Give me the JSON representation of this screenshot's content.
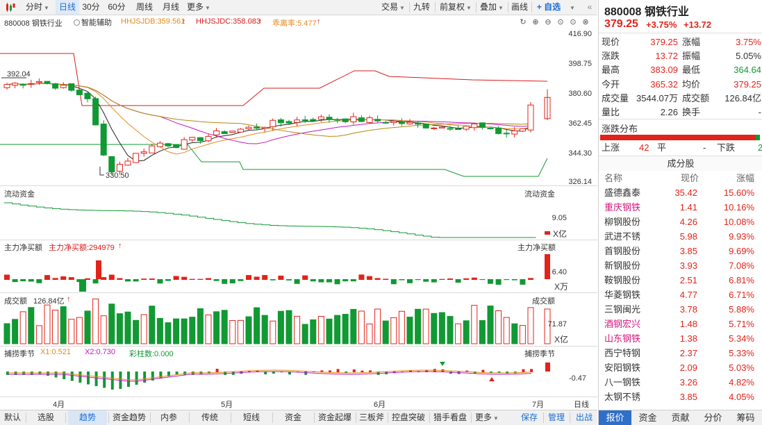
{
  "toolbar": {
    "left_items": [
      "分时",
      "日线",
      "30分",
      "60分",
      "周线",
      "月线",
      "更多"
    ],
    "active": "日线",
    "right_items": [
      "交易",
      "九转",
      "前复权",
      "叠加",
      "画线"
    ],
    "self_select": "+ 自选"
  },
  "main_panel": {
    "code_name": "880008 钢铁行业",
    "assist": "智能辅助",
    "ind1": "HHJSJDB:359.561",
    "ind2": "HHJSJDC:358.083",
    "ind3": "乖离率:5.477",
    "y_ticks": [
      "416.90",
      "398.75",
      "380.60",
      "362.45",
      "344.30",
      "326.14"
    ],
    "high_label": "392.04",
    "low_label": "330.50"
  },
  "flow_panel": {
    "title": "流动资金",
    "title_right": "流动资金",
    "value": "9.05",
    "unit": "X亿"
  },
  "net_panel": {
    "title": "主力净买额",
    "indicator": "主力净买额:294979",
    "title_right": "主力净买额",
    "value": "6.40",
    "unit": "X万"
  },
  "vol_panel": {
    "title": "成交额",
    "indicator": "126.84亿",
    "title_right": "成交额",
    "value": "71.87",
    "unit": "X亿"
  },
  "osc_panel": {
    "title": "捕捞季节",
    "x1": "X1:0.521",
    "x2": "X2:0.730",
    "bars": "彩柱数:0.000",
    "title_right": "捕捞季节",
    "value": "-0.47"
  },
  "x_axis": {
    "labels": [
      "4月",
      "5月",
      "6月",
      "7月"
    ],
    "period": "日线"
  },
  "bottom_bar": [
    "默认",
    "选股",
    "趋势",
    "资金趋势",
    "内参",
    "传统",
    "短线",
    "资金",
    "资金起爆",
    "三板斧",
    "控盘突破",
    "猎手看盘",
    "更多",
    "保存",
    "管理",
    "出战"
  ],
  "bottom_active": "趋势",
  "quote": {
    "code": "880008",
    "name": "钢铁行业",
    "price": "379.25",
    "change_pct": "+3.75%",
    "change": "+13.72",
    "rows": [
      {
        "l1": "现价",
        "v1": "379.25",
        "l2": "涨幅",
        "v2": "3.75%"
      },
      {
        "l1": "涨跌",
        "v1": "13.72",
        "l2": "振幅",
        "v2": "5.05%"
      },
      {
        "l1": "最高",
        "v1": "383.09",
        "l2": "最低",
        "v2": "364.64"
      },
      {
        "l1": "今开",
        "v1": "365.32",
        "l2": "均价",
        "v2": "379.25"
      },
      {
        "l1": "成交量",
        "v1": "3544.07万",
        "l2": "成交额",
        "v2": "126.84亿"
      },
      {
        "l1": "量比",
        "v1": "2.26",
        "l2": "换手",
        "v2": "-"
      }
    ],
    "dist_title": "涨跌分布",
    "up_label": "上涨",
    "up": "42",
    "flat_label": "平",
    "flat": "-",
    "down_label": "下跌",
    "down": "2",
    "section": "成分股",
    "headers": [
      "名称",
      "现价",
      "涨幅"
    ],
    "stocks": [
      {
        "name": "盛德鑫泰",
        "price": "35.42",
        "pct": "15.60%",
        "pink": false
      },
      {
        "name": "重庆钢铁",
        "price": "1.41",
        "pct": "10.16%",
        "pink": true
      },
      {
        "name": "柳钢股份",
        "price": "4.26",
        "pct": "10.08%",
        "pink": false
      },
      {
        "name": "武进不锈",
        "price": "5.98",
        "pct": "9.93%",
        "pink": false
      },
      {
        "name": "首钢股份",
        "price": "3.85",
        "pct": "9.69%",
        "pink": false
      },
      {
        "name": "新钢股份",
        "price": "3.93",
        "pct": "7.08%",
        "pink": false
      },
      {
        "name": "鞍钢股份",
        "price": "2.51",
        "pct": "6.81%",
        "pink": false
      },
      {
        "name": "华菱钢铁",
        "price": "4.77",
        "pct": "6.71%",
        "pink": false
      },
      {
        "name": "三钢闽光",
        "price": "3.78",
        "pct": "5.88%",
        "pink": false
      },
      {
        "name": "酒钢宏兴",
        "price": "1.48",
        "pct": "5.71%",
        "pink": true
      },
      {
        "name": "山东钢铁",
        "price": "1.38",
        "pct": "5.34%",
        "pink": true
      },
      {
        "name": "西宁特钢",
        "price": "2.37",
        "pct": "5.33%",
        "pink": false
      },
      {
        "name": "安阳钢铁",
        "price": "2.09",
        "pct": "5.03%",
        "pink": false
      },
      {
        "name": "八一钢铁",
        "price": "3.26",
        "pct": "4.82%",
        "pink": false
      },
      {
        "name": "太钢不锈",
        "price": "3.85",
        "pct": "4.05%",
        "pink": false
      }
    ],
    "tabs": [
      "报价",
      "资金",
      "贡献",
      "分价",
      "筹码"
    ],
    "active_tab": "报价"
  },
  "colors": {
    "up": "#e2231a",
    "down": "#119933",
    "accent": "#1a6fd6"
  }
}
